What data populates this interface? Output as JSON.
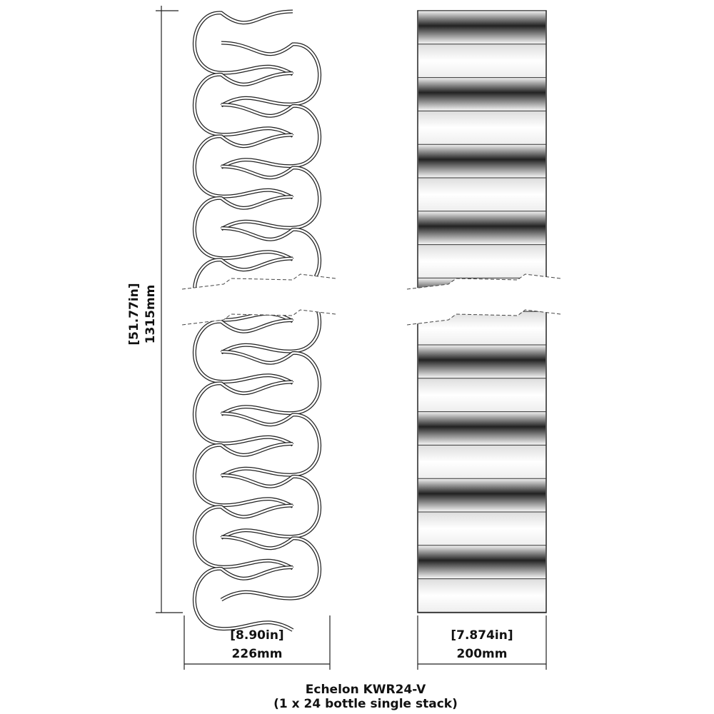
{
  "dimensions": {
    "height_in": "[51.77in]",
    "height_mm": "1315mm",
    "left_width_in": "[8.90in]",
    "left_width_mm": "226mm",
    "right_width_in": "[7.874in]",
    "right_width_mm": "200mm"
  },
  "caption": {
    "title": "Echelon KWR24-V",
    "subtitle": "(1 x 24 bottle single stack)"
  }
}
